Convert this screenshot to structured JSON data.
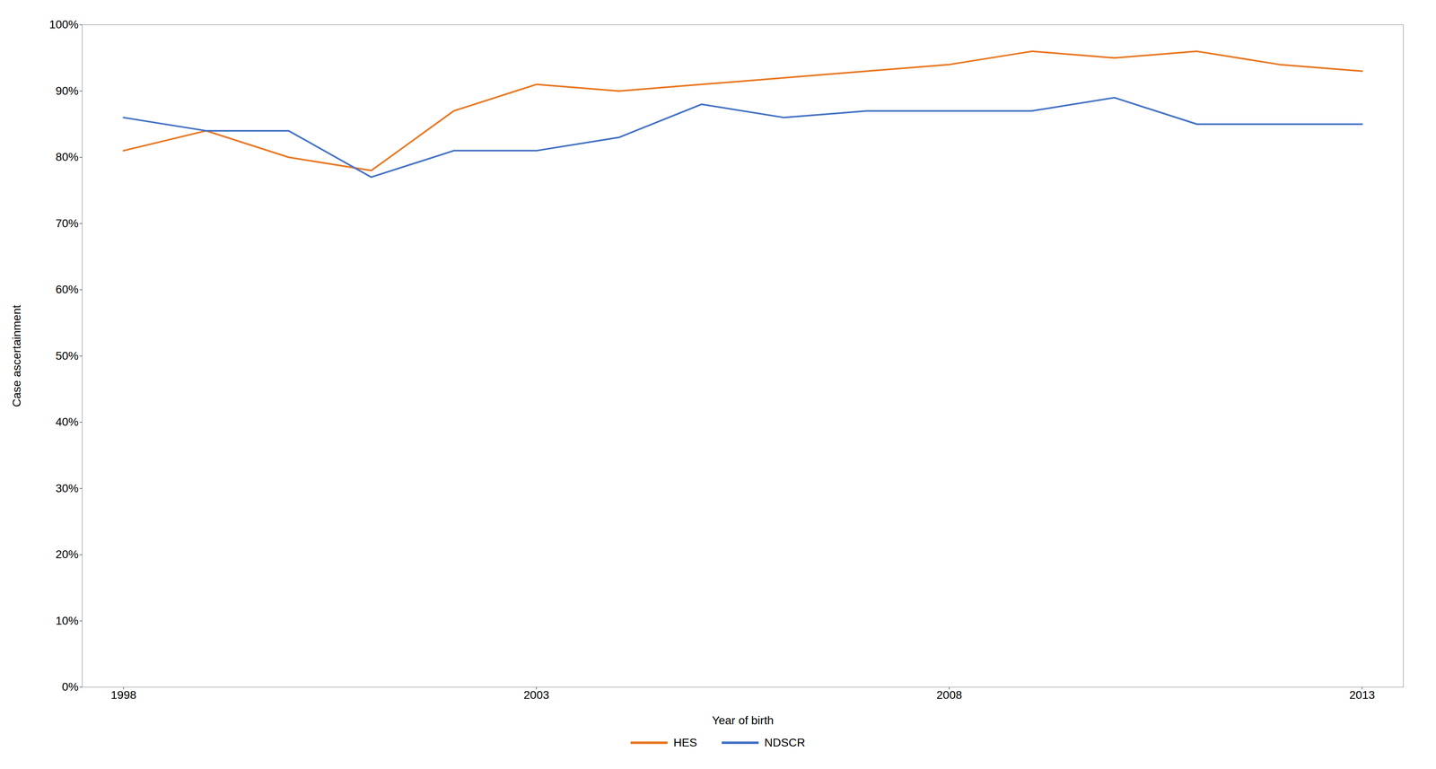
{
  "chart_data": {
    "type": "line",
    "xlabel": "Year of birth",
    "ylabel": "Case ascertainment",
    "x": [
      1998,
      1999,
      2000,
      2001,
      2002,
      2003,
      2004,
      2005,
      2006,
      2007,
      2008,
      2009,
      2010,
      2011,
      2012,
      2013
    ],
    "series": [
      {
        "name": "HES",
        "color": "#E87722",
        "values": [
          0.81,
          0.84,
          0.8,
          0.78,
          0.87,
          0.91,
          0.9,
          0.91,
          0.92,
          0.93,
          0.94,
          0.96,
          0.95,
          0.96,
          0.94,
          0.93
        ]
      },
      {
        "name": "NDSCR",
        "color": "#4472C4",
        "values": [
          0.86,
          0.84,
          0.84,
          0.77,
          0.81,
          0.81,
          0.83,
          0.88,
          0.86,
          0.87,
          0.87,
          0.87,
          0.89,
          0.85,
          0.85,
          0.85
        ]
      }
    ],
    "xlim": [
      1997.5,
      2013.5
    ],
    "xticks": [
      1998,
      2003,
      2008,
      2013
    ],
    "ylim": [
      0.0,
      1.0
    ],
    "yticks": [
      {
        "value": 0.0,
        "label": "0%"
      },
      {
        "value": 0.1,
        "label": "10%"
      },
      {
        "value": 0.2,
        "label": "20%"
      },
      {
        "value": 0.3,
        "label": "30%"
      },
      {
        "value": 0.4,
        "label": "40%"
      },
      {
        "value": 0.5,
        "label": "50%"
      },
      {
        "value": 0.6,
        "label": "60%"
      },
      {
        "value": 0.7,
        "label": "70%"
      },
      {
        "value": 0.8,
        "label": "80%"
      },
      {
        "value": 0.9,
        "label": "90%"
      },
      {
        "value": 1.0,
        "label": "100%"
      }
    ],
    "grid": false,
    "legend": "bottom"
  }
}
